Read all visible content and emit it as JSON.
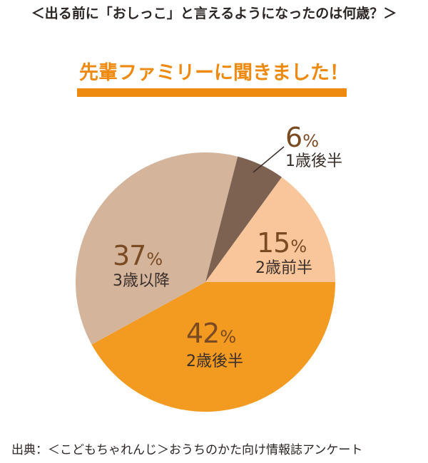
{
  "header": {
    "question": "＜出る前に「おしっこ」と言えるようになったのは何歳？＞",
    "subtitle": "先輩ファミリーに聞きました！"
  },
  "colors": {
    "title_orange": "#EE8A10",
    "label_brown": "#7A4A22",
    "slice_2sai_kouhan": "#F39A21",
    "slice_3sai_ikou": "#D4B59C",
    "slice_1sai_kouhan": "#7D6151",
    "slice_2sai_zenhan": "#F8C69A"
  },
  "chart_data": {
    "type": "pie",
    "title": "＜出る前に「おしっこ」と言えるようになったのは何歳？＞",
    "subtitle": "先輩ファミリーに聞きました！",
    "categories": [
      "2歳後半",
      "3歳以降",
      "1歳後半",
      "2歳前半"
    ],
    "values": [
      42,
      37,
      6,
      15
    ],
    "unit": "%",
    "start_angle_deg": 0,
    "direction": "clockwise",
    "colors": [
      "#F39A21",
      "#D4B59C",
      "#7D6151",
      "#F8C69A"
    ],
    "labels": [
      {
        "pct": "42",
        "cat": "2歳後半"
      },
      {
        "pct": "37",
        "cat": "3歳以降"
      },
      {
        "pct": "6",
        "cat": "1歳後半"
      },
      {
        "pct": "15",
        "cat": "2歳前半"
      }
    ],
    "legend": "none",
    "source": "出典：＜こどもちゃれんじ＞おうちのかた向け情報誌アンケート"
  },
  "labels": {
    "percent_symbol": "%"
  },
  "footer": {
    "source": "出典：＜こどもちゃれんじ＞おうちのかた向け情報誌アンケート"
  }
}
